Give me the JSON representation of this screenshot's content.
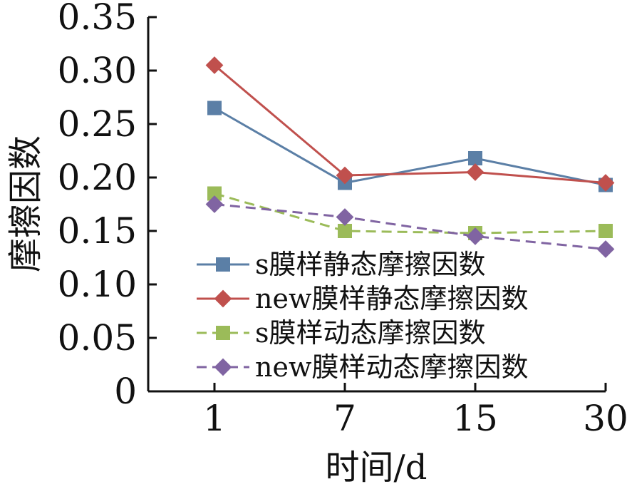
{
  "chart_data": {
    "type": "line",
    "title": "",
    "xlabel": "时间/d",
    "ylabel": "摩擦因数",
    "categories": [
      "1",
      "7",
      "15",
      "30"
    ],
    "ylim": [
      0,
      0.35
    ],
    "yticks": [
      "0",
      "0.05",
      "0.10",
      "0.15",
      "0.20",
      "0.25",
      "0.30",
      "0.35"
    ],
    "ytick_values": [
      0,
      0.05,
      0.1,
      0.15,
      0.2,
      0.25,
      0.3,
      0.35
    ],
    "grid": false,
    "legend_position": "bottom-right",
    "series": [
      {
        "name": "s膜样静态摩擦因数",
        "values": [
          0.265,
          0.195,
          0.218,
          0.193
        ],
        "color": "#5b7fa6",
        "marker": "square",
        "dash": "solid"
      },
      {
        "name": "new膜样静态摩擦因数",
        "values": [
          0.305,
          0.202,
          0.205,
          0.195
        ],
        "color": "#c0504d",
        "marker": "diamond",
        "dash": "solid"
      },
      {
        "name": "s膜样动态摩擦因数",
        "values": [
          0.185,
          0.15,
          0.148,
          0.15
        ],
        "color": "#9bbb59",
        "marker": "square",
        "dash": "dashed"
      },
      {
        "name": "new膜样动态摩擦因数",
        "values": [
          0.175,
          0.163,
          0.145,
          0.133
        ],
        "color": "#8064a2",
        "marker": "diamond",
        "dash": "dashed"
      }
    ]
  }
}
